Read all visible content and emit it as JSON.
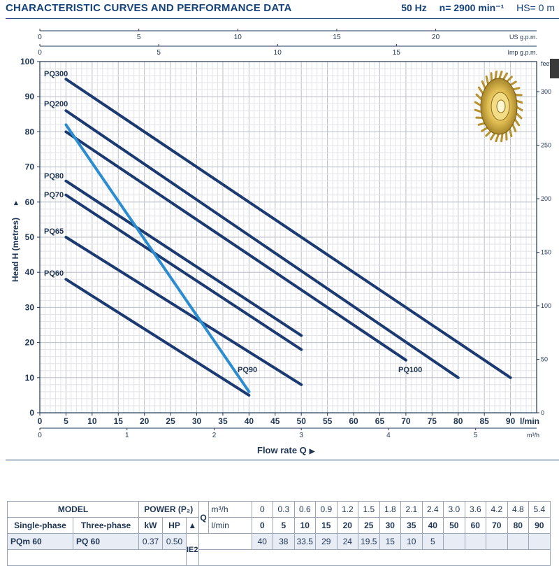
{
  "header": {
    "title": "CHARACTERISTIC CURVES AND PERFORMANCE DATA",
    "frequency": "50 Hz",
    "speed": "n= 2900 min⁻¹",
    "suction": "HS= 0 m"
  },
  "flow_label": "Flow rate Q",
  "chart_data": {
    "type": "line",
    "title": "",
    "xlabel": "l/min",
    "ylabel": "Head H  (metres)",
    "xlim": [
      0,
      95
    ],
    "ylim": [
      0,
      100
    ],
    "x_ticks": [
      0,
      5,
      10,
      15,
      20,
      25,
      30,
      35,
      40,
      45,
      50,
      55,
      60,
      65,
      70,
      75,
      80,
      85,
      90
    ],
    "x_ticks_m3h": [
      0,
      1,
      2,
      3,
      4,
      5
    ],
    "x_unit_m3h": "m³/h",
    "x_ticks_imp_gpm": [
      0,
      5,
      10,
      15
    ],
    "x_unit_imp_gpm": "Imp g.p.m.",
    "x_ticks_us_gpm": [
      0,
      5,
      10,
      15,
      20
    ],
    "x_unit_us_gpm": "US g.p.m.",
    "y_ticks": [
      0,
      10,
      20,
      30,
      40,
      50,
      60,
      70,
      80,
      90,
      100
    ],
    "y_ticks_feet": [
      0,
      50,
      100,
      150,
      200,
      250,
      300
    ],
    "y_unit_feet": "feet",
    "grid": true,
    "series": [
      {
        "name": "PQ300",
        "color": "#1b3a72",
        "x": [
          5,
          90
        ],
        "y": [
          95,
          10
        ]
      },
      {
        "name": "PQ200",
        "color": "#1b3a72",
        "x": [
          5,
          80
        ],
        "y": [
          86,
          10
        ]
      },
      {
        "name": "PQ100",
        "color": "#1b3a72",
        "x": [
          5,
          70
        ],
        "y": [
          80,
          15
        ]
      },
      {
        "name": "PQ80",
        "color": "#1b3a72",
        "x": [
          5,
          50
        ],
        "y": [
          66,
          22
        ]
      },
      {
        "name": "PQ70",
        "color": "#1b3a72",
        "x": [
          5,
          50
        ],
        "y": [
          62,
          18
        ]
      },
      {
        "name": "PQ65",
        "color": "#1b3a72",
        "x": [
          5,
          50
        ],
        "y": [
          50,
          8
        ]
      },
      {
        "name": "PQ60",
        "color": "#1b3a72",
        "x": [
          5,
          40
        ],
        "y": [
          38,
          5
        ]
      },
      {
        "name": "PQ90",
        "color": "#2b8ccf",
        "x": [
          5,
          40
        ],
        "y": [
          82,
          6
        ]
      }
    ]
  },
  "table": {
    "model_header": "MODEL",
    "power_header": "POWER (P₂)",
    "q_header": "Q",
    "unit_m3h": "m³/h",
    "unit_lmin": "l/min",
    "single_phase": "Single-phase",
    "three_phase": "Three-phase",
    "kw": "kW",
    "hp": "HP",
    "triangle": "▲",
    "ie_label": "IE2",
    "q_m3h": [
      "0",
      "0.3",
      "0.6",
      "0.9",
      "1.2",
      "1.5",
      "1.8",
      "2.1",
      "2.4",
      "3.0",
      "3.6",
      "4.2",
      "4.8",
      "5.4"
    ],
    "q_lmin": [
      "0",
      "5",
      "10",
      "15",
      "20",
      "25",
      "30",
      "35",
      "40",
      "50",
      "60",
      "70",
      "80",
      "90"
    ],
    "rows": [
      {
        "single": "PQm 60",
        "three": "PQ 60",
        "kw": "0.37",
        "hp": "0.50",
        "heads": [
          "40",
          "38",
          "33.5",
          "29",
          "24",
          "19.5",
          "15",
          "10",
          "5",
          "",
          "",
          "",
          "",
          ""
        ]
      }
    ]
  }
}
